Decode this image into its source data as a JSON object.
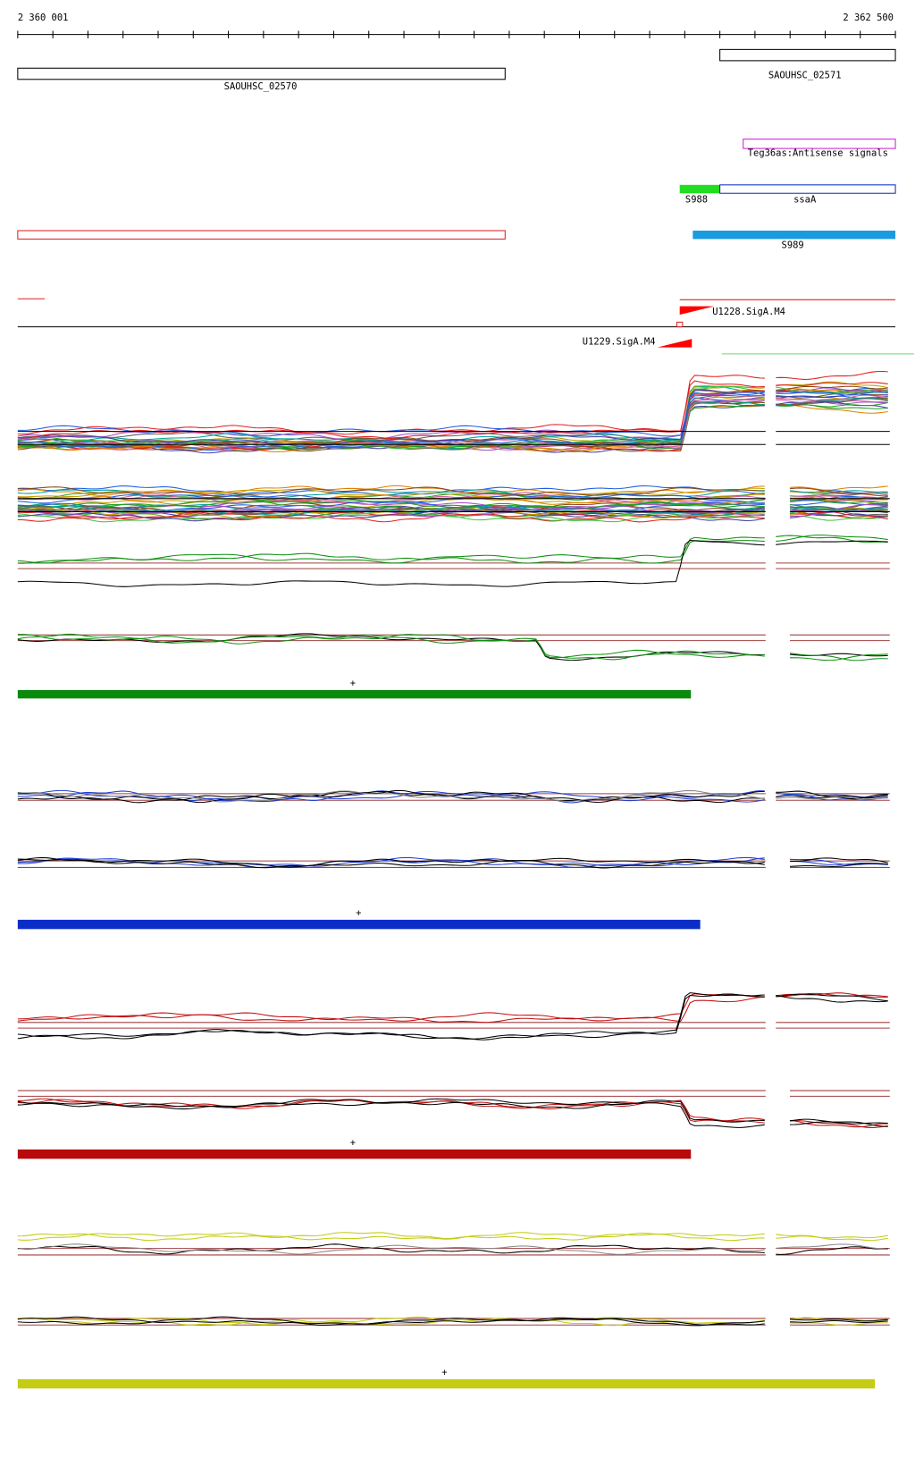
{
  "ruler": {
    "start": "2 360 001",
    "end": "2 362 500"
  },
  "genes": [
    {
      "label": "SAOUHSC_02570"
    },
    {
      "label": "SAOUHSC_02571"
    }
  ],
  "features": {
    "antisense": "Teg36as:Antisense signals",
    "s988": "S988",
    "ssaA": "ssaA",
    "s989": "S989"
  },
  "promoters": [
    "U1228.SigA.M4",
    "U1229.SigA.M4"
  ],
  "strands": [
    "+",
    "+",
    "+",
    "+"
  ]
}
